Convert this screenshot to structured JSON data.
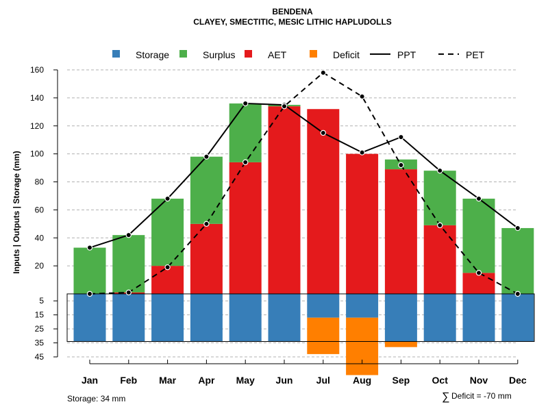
{
  "chart_data": {
    "type": "water_balance",
    "title": "BENDENA",
    "subtitle": "CLAYEY, SMECTITIC, MESIC LITHIC HAPLUDOLLS",
    "ylabel": "Inputs | Outputs | Storage    (mm)",
    "categories": [
      "Jan",
      "Feb",
      "Mar",
      "Apr",
      "May",
      "Jun",
      "Jul",
      "Aug",
      "Sep",
      "Oct",
      "Nov",
      "Dec"
    ],
    "upper_ylim": [
      0,
      160
    ],
    "upper_ticks": [
      "20",
      "40",
      "60",
      "80",
      "100",
      "120",
      "140",
      "160"
    ],
    "lower_ticks": [
      "5",
      "15",
      "25",
      "35",
      "45"
    ],
    "lower_ylim": [
      0,
      45
    ],
    "legend": [
      {
        "key": "storage",
        "label": "Storage",
        "color": "#377eb8",
        "kind": "box"
      },
      {
        "key": "surplus",
        "label": "Surplus",
        "color": "#4daf4a",
        "kind": "box"
      },
      {
        "key": "aet",
        "label": "AET",
        "color": "#e41a1c",
        "kind": "box"
      },
      {
        "key": "deficit",
        "label": "Deficit",
        "color": "#ff7f00",
        "kind": "box"
      },
      {
        "key": "ppt",
        "label": "PPT",
        "color": "#000000",
        "kind": "solid"
      },
      {
        "key": "pet",
        "label": "PET",
        "color": "#000000",
        "kind": "dashed"
      }
    ],
    "series": [
      {
        "name": "AET",
        "values": [
          0,
          1,
          20,
          50,
          94,
          134,
          132,
          100,
          89,
          49,
          15,
          0
        ]
      },
      {
        "name": "Surplus",
        "values": [
          33,
          41,
          48,
          48,
          42,
          1,
          0,
          0,
          7,
          39,
          53,
          47
        ]
      },
      {
        "name": "PPT",
        "values": [
          33,
          42,
          68,
          98,
          136,
          135,
          115,
          101,
          112,
          88,
          68,
          47
        ]
      },
      {
        "name": "PET",
        "values": [
          0,
          1,
          19,
          50,
          94,
          134,
          158,
          141,
          92,
          49,
          15,
          0
        ]
      },
      {
        "name": "Storage",
        "values": [
          34,
          34,
          34,
          34,
          34,
          34,
          17,
          17,
          34,
          34,
          34,
          34
        ]
      },
      {
        "name": "Deficit",
        "values": [
          0,
          0,
          0,
          0,
          0,
          0,
          26,
          41,
          4,
          0,
          0,
          0
        ]
      }
    ],
    "storage_capacity": 34
  },
  "footer": {
    "storage_note": "Storage: 34 mm",
    "sum_symbol": "∑",
    "deficit_note": "Deficit = -70 mm"
  }
}
